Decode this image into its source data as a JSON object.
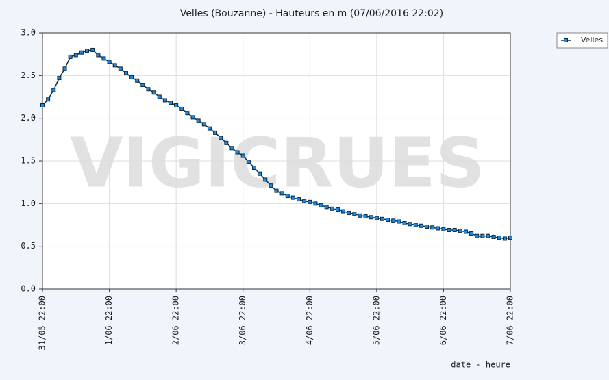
{
  "chart_data": {
    "type": "line",
    "title": "Velles (Bouzanne) - Hauteurs en m (07/06/2016 22:02)",
    "x_label": "date - heure",
    "watermark": "VIGICRUES",
    "legend": "top-right",
    "grid": true,
    "xlim": [
      "31/05 22:00",
      "7/06 22:00"
    ],
    "xticks": [
      "31/05 22:00",
      "1/06 22:00",
      "2/06 22:00",
      "3/06 22:00",
      "4/06 22:00",
      "5/06 22:00",
      "6/06 22:00",
      "7/06 22:00"
    ],
    "ylim": [
      0,
      3
    ],
    "yticks": [
      {
        "value": 0,
        "label": "0.0"
      },
      0.5,
      {
        "value": 1,
        "label": "1.0"
      },
      1.5,
      {
        "value": 2,
        "label": "2.0"
      },
      2.5,
      {
        "value": 3,
        "label": "3.0"
      }
    ],
    "x": [
      "31/05 22:00",
      "1/06 00:00",
      "1/06 02:00",
      "1/06 04:00",
      "1/06 06:00",
      "1/06 08:00",
      "1/06 10:00",
      "1/06 12:00",
      "1/06 14:00",
      "1/06 16:00",
      "1/06 18:00",
      "1/06 20:00",
      "1/06 22:00",
      "2/06 00:00",
      "2/06 02:00",
      "2/06 04:00",
      "2/06 06:00",
      "2/06 08:00",
      "2/06 10:00",
      "2/06 12:00",
      "2/06 14:00",
      "2/06 16:00",
      "2/06 18:00",
      "2/06 20:00",
      "2/06 22:00",
      "3/06 00:00",
      "3/06 02:00",
      "3/06 04:00",
      "3/06 06:00",
      "3/06 08:00",
      "3/06 10:00",
      "3/06 12:00",
      "3/06 14:00",
      "3/06 16:00",
      "3/06 18:00",
      "3/06 20:00",
      "3/06 22:00",
      "4/06 00:00",
      "4/06 02:00",
      "4/06 04:00",
      "4/06 06:00",
      "4/06 08:00",
      "4/06 10:00",
      "4/06 12:00",
      "4/06 14:00",
      "4/06 16:00",
      "4/06 18:00",
      "4/06 20:00",
      "4/06 22:00",
      "5/06 00:00",
      "5/06 02:00",
      "5/06 04:00",
      "5/06 06:00",
      "5/06 08:00",
      "5/06 10:00",
      "5/06 12:00",
      "5/06 14:00",
      "5/06 16:00",
      "5/06 18:00",
      "5/06 20:00",
      "5/06 22:00",
      "6/06 00:00",
      "6/06 02:00",
      "6/06 04:00",
      "6/06 06:00",
      "6/06 08:00",
      "6/06 10:00",
      "6/06 12:00",
      "6/06 14:00",
      "6/06 16:00",
      "6/06 18:00",
      "6/06 20:00",
      "6/06 22:00",
      "7/06 00:00",
      "7/06 02:00",
      "7/06 04:00",
      "7/06 06:00",
      "7/06 08:00",
      "7/06 10:00",
      "7/06 12:00",
      "7/06 14:00",
      "7/06 16:00",
      "7/06 18:00",
      "7/06 20:00",
      "7/06 22:00"
    ],
    "series": [
      {
        "name": "Velles",
        "color": "#1e88e5",
        "line_color": "#0b2a3f",
        "values": [
          2.15,
          2.22,
          2.33,
          2.47,
          2.58,
          2.72,
          2.74,
          2.77,
          2.79,
          2.8,
          2.74,
          2.7,
          2.66,
          2.62,
          2.58,
          2.53,
          2.48,
          2.44,
          2.39,
          2.34,
          2.3,
          2.25,
          2.21,
          2.18,
          2.15,
          2.11,
          2.06,
          2.01,
          1.97,
          1.93,
          1.88,
          1.83,
          1.77,
          1.71,
          1.65,
          1.6,
          1.56,
          1.49,
          1.42,
          1.35,
          1.28,
          1.21,
          1.15,
          1.12,
          1.09,
          1.07,
          1.05,
          1.03,
          1.02,
          1.0,
          0.98,
          0.96,
          0.94,
          0.93,
          0.91,
          0.89,
          0.88,
          0.86,
          0.85,
          0.84,
          0.83,
          0.82,
          0.81,
          0.8,
          0.79,
          0.77,
          0.76,
          0.75,
          0.74,
          0.73,
          0.72,
          0.71,
          0.7,
          0.69,
          0.69,
          0.68,
          0.67,
          0.65,
          0.62,
          0.62,
          0.62,
          0.61,
          0.6,
          0.59,
          0.6
        ]
      }
    ]
  }
}
